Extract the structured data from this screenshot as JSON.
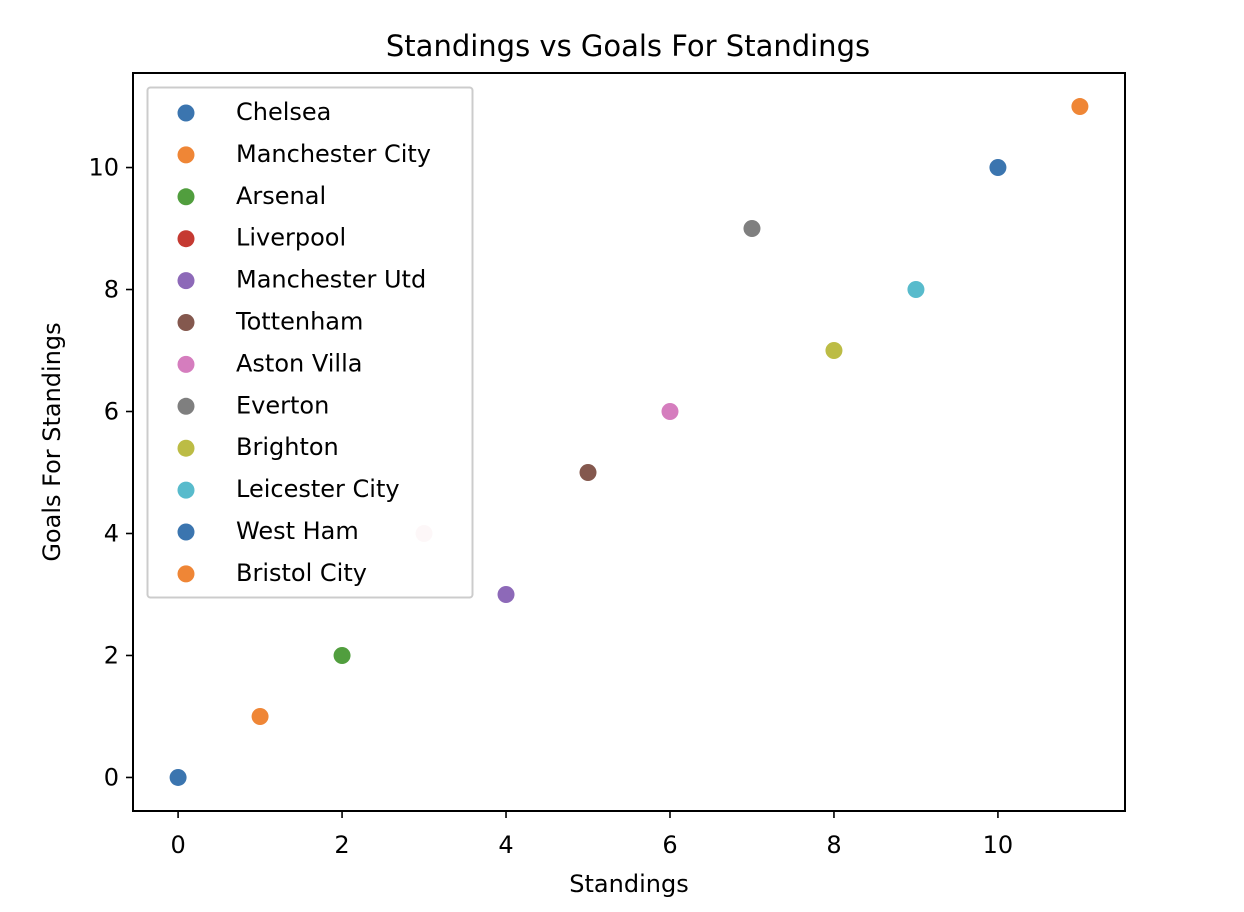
{
  "chart_data": {
    "type": "scatter",
    "title": "Standings vs Goals For Standings",
    "xlabel": "Standings",
    "ylabel": "Goals For Standings",
    "xlim": [
      -0.55,
      11.55
    ],
    "ylim": [
      -0.55,
      11.55
    ],
    "xticks": [
      0,
      2,
      4,
      6,
      8,
      10
    ],
    "yticks": [
      0,
      2,
      4,
      6,
      8,
      10
    ],
    "grid": false,
    "legend_position": "upper-left",
    "series": [
      {
        "name": "Chelsea",
        "color": "#3b75af",
        "points": [
          {
            "x": 0,
            "y": 0
          }
        ]
      },
      {
        "name": "Manchester City",
        "color": "#ef8636",
        "points": [
          {
            "x": 1,
            "y": 1
          }
        ]
      },
      {
        "name": "Arsenal",
        "color": "#519e3e",
        "points": [
          {
            "x": 2,
            "y": 2
          }
        ]
      },
      {
        "name": "Liverpool",
        "color": "#c53a32",
        "points": [
          {
            "x": 3,
            "y": 4
          }
        ],
        "point_color": "#f4d8dc"
      },
      {
        "name": "Manchester Utd",
        "color": "#8d69b8",
        "points": [
          {
            "x": 4,
            "y": 3
          }
        ]
      },
      {
        "name": "Tottenham",
        "color": "#84584e",
        "points": [
          {
            "x": 5,
            "y": 5
          }
        ]
      },
      {
        "name": "Aston Villa",
        "color": "#d57dbe",
        "points": [
          {
            "x": 6,
            "y": 6
          }
        ]
      },
      {
        "name": "Everton",
        "color": "#7f7f7f",
        "points": [
          {
            "x": 7,
            "y": 9
          }
        ]
      },
      {
        "name": "Brighton",
        "color": "#bcbc45",
        "points": [
          {
            "x": 8,
            "y": 7
          }
        ]
      },
      {
        "name": "Leicester City",
        "color": "#58bbcc",
        "points": [
          {
            "x": 9,
            "y": 8
          }
        ]
      },
      {
        "name": "West Ham",
        "color": "#3b75af",
        "points": [
          {
            "x": 10,
            "y": 10
          }
        ]
      },
      {
        "name": "Bristol City",
        "color": "#ef8636",
        "points": [
          {
            "x": 11,
            "y": 11
          }
        ]
      }
    ]
  }
}
